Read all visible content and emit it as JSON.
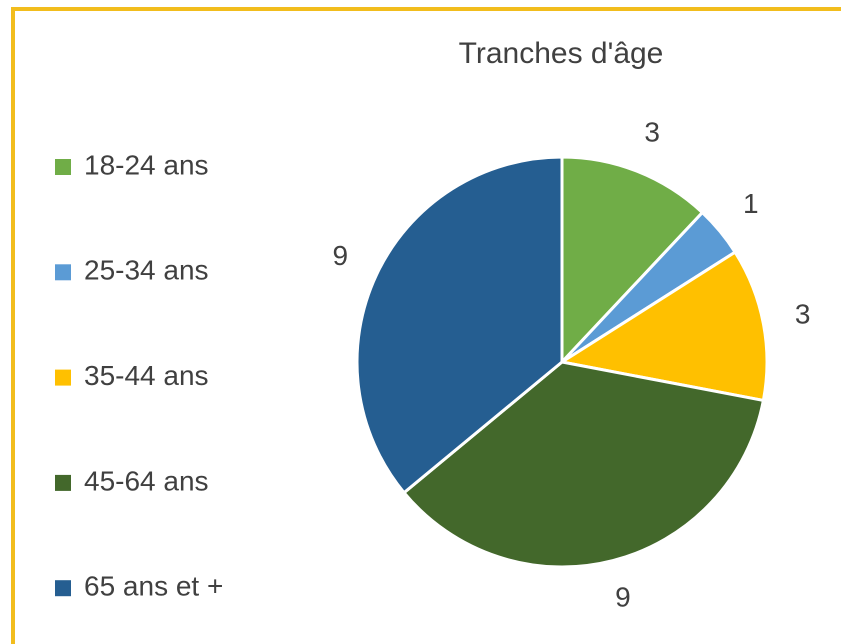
{
  "chart_data": {
    "type": "pie",
    "title": "Tranches d'âge",
    "categories": [
      "18-24 ans",
      "25-34 ans",
      "35-44 ans",
      "45-64 ans",
      "65 ans et +"
    ],
    "values": [
      3,
      1,
      3,
      9,
      9
    ],
    "colors": [
      "#70ad47",
      "#5b9bd5",
      "#ffc000",
      "#43682b",
      "#255e91"
    ],
    "legend": "left"
  }
}
